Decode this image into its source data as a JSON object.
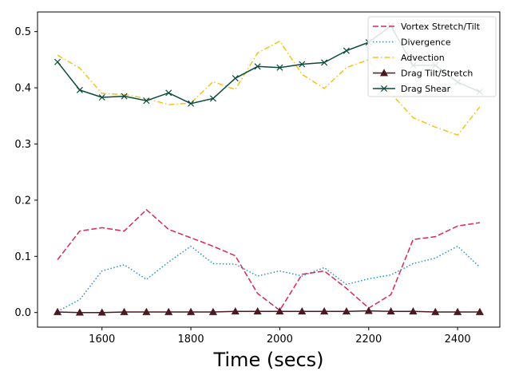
{
  "chart_data": {
    "type": "line",
    "title": "",
    "xlabel": "Time (secs)",
    "ylabel": "",
    "xlim": [
      1455,
      2495
    ],
    "ylim": [
      -0.026,
      0.535
    ],
    "xticks": [
      1600,
      1800,
      2000,
      2200,
      2400
    ],
    "yticks": [
      0.0,
      0.1,
      0.2,
      0.3,
      0.4,
      0.5
    ],
    "xtick_labels": [
      "1600",
      "1800",
      "2000",
      "2200",
      "2400"
    ],
    "ytick_labels": [
      "0.0",
      "0.1",
      "0.2",
      "0.3",
      "0.4",
      "0.5"
    ],
    "grid": false,
    "legend_position": "top-right",
    "x": [
      1500,
      1550,
      1600,
      1650,
      1700,
      1750,
      1800,
      1850,
      1900,
      1950,
      2000,
      2050,
      2100,
      2150,
      2200,
      2250,
      2300,
      2350,
      2400,
      2450
    ],
    "series": [
      {
        "name": "Vortex Stretch/Tilt",
        "color": "#d42a5a",
        "style": "dashed",
        "marker": "none",
        "values": [
          0.094,
          0.145,
          0.151,
          0.145,
          0.183,
          0.148,
          0.133,
          0.118,
          0.101,
          0.034,
          0.004,
          0.068,
          0.074,
          0.043,
          0.008,
          0.032,
          0.13,
          0.135,
          0.154,
          0.16
        ]
      },
      {
        "name": "Divergence",
        "color": "#2a8dc8",
        "style": "dotted",
        "marker": "none",
        "values": [
          0.002,
          0.023,
          0.074,
          0.085,
          0.059,
          0.09,
          0.118,
          0.087,
          0.086,
          0.065,
          0.074,
          0.065,
          0.08,
          0.05,
          0.06,
          0.067,
          0.087,
          0.097,
          0.118,
          0.081
        ]
      },
      {
        "name": "Advection",
        "color": "#f5c21a",
        "style": "dashdot",
        "marker": "none",
        "values": [
          0.458,
          0.435,
          0.39,
          0.388,
          0.381,
          0.37,
          0.373,
          0.411,
          0.397,
          0.462,
          0.483,
          0.424,
          0.399,
          0.436,
          0.45,
          0.39,
          0.347,
          0.33,
          0.316,
          0.366
        ]
      },
      {
        "name": "Drag Tilt/Stretch",
        "color": "#4a1a22",
        "style": "solid",
        "marker": "triangle",
        "values": [
          0.001,
          0.0,
          0.0,
          0.001,
          0.001,
          0.001,
          0.001,
          0.001,
          0.002,
          0.002,
          0.002,
          0.002,
          0.002,
          0.002,
          0.003,
          0.002,
          0.002,
          0.001,
          0.001,
          0.001
        ]
      },
      {
        "name": "Drag Shear",
        "color": "#0a4a3c",
        "style": "solid",
        "marker": "x",
        "values": [
          0.446,
          0.396,
          0.383,
          0.385,
          0.377,
          0.391,
          0.372,
          0.381,
          0.417,
          0.438,
          0.436,
          0.442,
          0.445,
          0.466,
          0.481,
          0.51,
          0.44,
          0.44,
          0.41,
          0.393
        ]
      }
    ]
  }
}
